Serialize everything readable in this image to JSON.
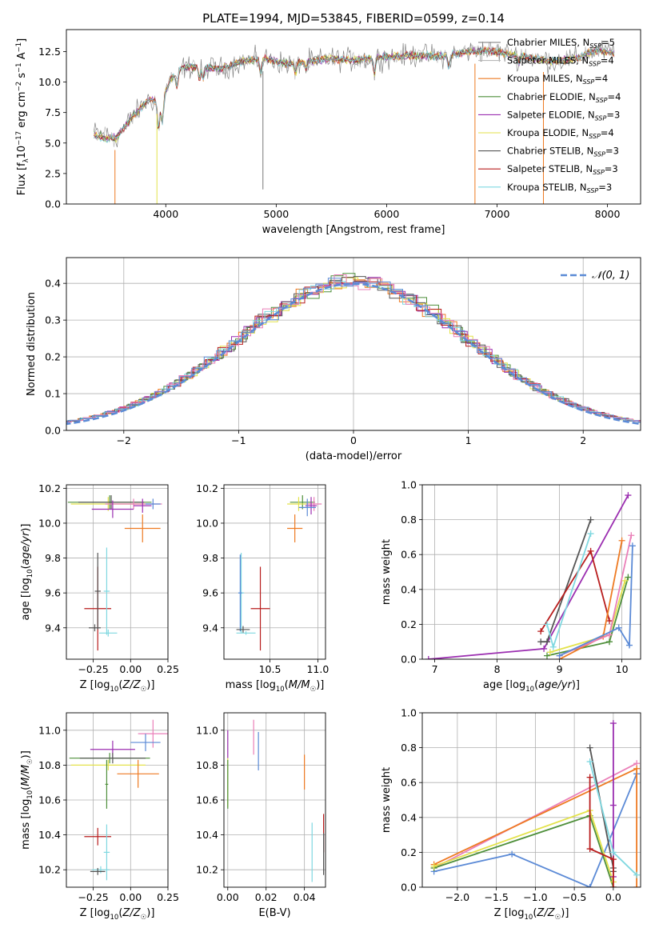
{
  "figure": {
    "title": "PLATE=1994, MJD=53845, FIBERID=0599, z=0.14"
  },
  "chart_data": [
    {
      "id": "spectrum",
      "type": "line",
      "title": "PLATE=1994, MJD=53845, FIBERID=0599, z=0.14",
      "xlabel": "wavelength [Angstrom, rest frame]",
      "ylabel": "Flux [f_λ 10^-17 erg cm^-2 s^-1 A^-1]",
      "xlim": [
        3100,
        8300
      ],
      "ylim": [
        0,
        14.3
      ],
      "xticks": [
        4000,
        5000,
        6000,
        7000,
        8000
      ],
      "yticks": [
        0.0,
        2.5,
        5.0,
        7.5,
        10.0,
        12.5
      ],
      "grid": false,
      "legend_position": "upper-right",
      "series": [
        {
          "name": "Chabrier MILES, N_SSP=5",
          "color": "#777777"
        },
        {
          "name": "Salpeter MILES, N_SSP=4",
          "color": "#b9b9b9"
        },
        {
          "name": "Kroupa MILES, N_SSP=4",
          "color": "#ee7a22"
        },
        {
          "name": "Chabrier ELODIE, N_SSP=4",
          "color": "#4e8f3a"
        },
        {
          "name": "Salpeter ELODIE, N_SSP=3",
          "color": "#9b2eb0"
        },
        {
          "name": "Kroupa ELODIE, N_SSP=4",
          "color": "#e3e24a"
        },
        {
          "name": "Chabrier STELIB, N_SSP=3",
          "color": "#555555"
        },
        {
          "name": "Salpeter STELIB, N_SSP=3",
          "color": "#b81c1c"
        },
        {
          "name": "Kroupa STELIB, N_SSP=3",
          "color": "#7fd8e0"
        }
      ],
      "continuum": {
        "x": [
          3350,
          3550,
          3700,
          3850,
          3950,
          4050,
          4150,
          4300,
          4500,
          4700,
          4900,
          5100,
          5300,
          5500,
          5700,
          5900,
          6100,
          6300,
          6500,
          6700,
          6900,
          7100,
          7300,
          7500,
          7700,
          7900,
          8060
        ],
        "y": [
          5.9,
          5.4,
          7.2,
          8.6,
          8.3,
          10.3,
          11.2,
          11.3,
          11.1,
          11.7,
          11.9,
          11.5,
          11.7,
          11.9,
          11.8,
          12.0,
          12.1,
          12.2,
          12.1,
          12.4,
          12.6,
          12.3,
          12.0,
          11.7,
          11.9,
          12.6,
          12.4
        ]
      }
    },
    {
      "id": "residuals",
      "type": "line",
      "xlabel": "(data-model)/error",
      "ylabel": "Normed distribution",
      "xlim": [
        -2.5,
        2.5
      ],
      "ylim": [
        0,
        0.47
      ],
      "xticks": [
        -2,
        -1,
        0,
        1,
        2
      ],
      "yticks": [
        0.0,
        0.1,
        0.2,
        0.3,
        0.4
      ],
      "grid": true,
      "legend": [
        "𝒩(0, 1)"
      ],
      "legend_position": "top-right",
      "reference": {
        "name": "𝒩(0, 1)",
        "mean": 0,
        "sigma": 1,
        "color": "#5b8ad6"
      },
      "histogram_colors": [
        "#ee7a22",
        "#4e8f3a",
        "#9b2eb0",
        "#e3e24a",
        "#555555",
        "#b81c1c",
        "#7fd8e0",
        "#ea7fb8",
        "#5b8ad6"
      ]
    },
    {
      "id": "age_vs_Z",
      "type": "scatter",
      "xlabel": "Z [log10(Z/Z☉)]",
      "ylabel": "age  [log10(age/yr)]",
      "xlim": [
        -0.43,
        0.25
      ],
      "ylim": [
        9.22,
        10.22
      ],
      "xticks": [
        -0.25,
        0.0,
        0.25
      ],
      "ytick_values": [
        9.4,
        9.6,
        9.8,
        10.0,
        10.2
      ],
      "grid": true,
      "points": [
        {
          "x": -0.14,
          "y": 10.12,
          "xerr": 0.28,
          "yerr": 0.04,
          "color": "#4e8f3a"
        },
        {
          "x": -0.15,
          "y": 10.11,
          "xerr": 0.25,
          "yerr": 0.04,
          "color": "#e3e24a"
        },
        {
          "x": -0.13,
          "y": 10.12,
          "xerr": 0.22,
          "yerr": 0.04,
          "color": "#555555"
        },
        {
          "x": 0.02,
          "y": 10.11,
          "xerr": 0.19,
          "yerr": 0.03,
          "color": "#ea7fb8"
        },
        {
          "x": 0.15,
          "y": 10.11,
          "xerr": 0.05,
          "yerr": 0.03,
          "color": "#5b8ad6"
        },
        {
          "x": 0.08,
          "y": 10.1,
          "xerr": 0.06,
          "yerr": 0.04,
          "color": "#9b2eb0"
        },
        {
          "x": -0.12,
          "y": 10.08,
          "xerr": 0.14,
          "yerr": 0.05,
          "color": "#9b2eb0"
        },
        {
          "x": 0.08,
          "y": 9.97,
          "xerr": 0.12,
          "yerr": 0.08,
          "color": "#ee7a22"
        },
        {
          "x": -0.22,
          "y": 9.51,
          "xerr": 0.09,
          "yerr": 0.24,
          "color": "#b81c1c"
        },
        {
          "x": -0.22,
          "y": 9.61,
          "xerr": 0.02,
          "yerr": 0.22,
          "color": "#555555"
        },
        {
          "x": -0.16,
          "y": 9.61,
          "xerr": 0.02,
          "yerr": 0.25,
          "color": "#7fd8e0"
        },
        {
          "x": -0.15,
          "y": 9.37,
          "xerr": 0.06,
          "yerr": 0.02,
          "color": "#7fd8e0"
        },
        {
          "x": -0.24,
          "y": 9.4,
          "xerr": 0.04,
          "yerr": 0.02,
          "color": "#555555"
        }
      ]
    },
    {
      "id": "age_vs_mass",
      "type": "scatter",
      "xlabel": "mass [log10(M/M☉)]",
      "ylabel": "",
      "xlim": [
        10.02,
        11.08
      ],
      "ylim": [
        9.22,
        10.22
      ],
      "xticks": [
        10.5,
        11.0
      ],
      "yticks": [
        9.4,
        9.6,
        9.8,
        10.0,
        10.2
      ],
      "grid": true,
      "points": [
        {
          "x": 10.84,
          "y": 10.12,
          "xerr": 0.13,
          "yerr": 0.04,
          "color": "#4e8f3a"
        },
        {
          "x": 10.8,
          "y": 10.11,
          "xerr": 0.12,
          "yerr": 0.04,
          "color": "#e3e24a"
        },
        {
          "x": 10.96,
          "y": 10.11,
          "xerr": 0.08,
          "yerr": 0.04,
          "color": "#ea7fb8"
        },
        {
          "x": 10.93,
          "y": 10.1,
          "xerr": 0.06,
          "yerr": 0.05,
          "color": "#9b2eb0"
        },
        {
          "x": 10.89,
          "y": 10.09,
          "xerr": 0.09,
          "yerr": 0.05,
          "color": "#5b8ad6"
        },
        {
          "x": 10.76,
          "y": 9.97,
          "xerr": 0.08,
          "yerr": 0.08,
          "color": "#ee7a22"
        },
        {
          "x": 10.4,
          "y": 9.51,
          "xerr": 0.1,
          "yerr": 0.24,
          "color": "#b81c1c"
        },
        {
          "x": 10.2,
          "y": 9.6,
          "xerr": 0.03,
          "yerr": 0.23,
          "color": "#7fd8e0"
        },
        {
          "x": 10.19,
          "y": 9.6,
          "xerr": 0.02,
          "yerr": 0.22,
          "color": "#5b8ad6"
        },
        {
          "x": 10.22,
          "y": 9.39,
          "xerr": 0.07,
          "yerr": 0.02,
          "color": "#555555"
        },
        {
          "x": 10.25,
          "y": 9.37,
          "xerr": 0.1,
          "yerr": 0.01,
          "color": "#7fd8e0"
        }
      ]
    },
    {
      "id": "weight_vs_age",
      "type": "line",
      "xlabel": "age  [log10(age/yr)]",
      "ylabel": "mass weight",
      "xlim": [
        6.8,
        10.3
      ],
      "ylim": [
        0,
        1.0
      ],
      "xticks": [
        7,
        8,
        9,
        10
      ],
      "yticks": [
        0.0,
        0.2,
        0.4,
        0.6,
        0.8,
        1.0
      ],
      "grid": true,
      "series": [
        {
          "color": "#9b2eb0",
          "x": [
            6.9,
            8.75,
            10.1
          ],
          "y": [
            0.0,
            0.06,
            0.94
          ]
        },
        {
          "color": "#555555",
          "x": [
            8.7,
            8.8,
            9.5
          ],
          "y": [
            0.1,
            0.1,
            0.8
          ]
        },
        {
          "color": "#b81c1c",
          "x": [
            8.7,
            9.5,
            9.8
          ],
          "y": [
            0.16,
            0.62,
            0.22
          ]
        },
        {
          "color": "#7fd8e0",
          "x": [
            8.8,
            8.9,
            9.5
          ],
          "y": [
            0.2,
            0.07,
            0.72
          ]
        },
        {
          "color": "#4e8f3a",
          "x": [
            8.8,
            9.8,
            10.1
          ],
          "y": [
            0.02,
            0.1,
            0.47
          ]
        },
        {
          "color": "#e3e24a",
          "x": [
            8.85,
            9.8,
            10.05
          ],
          "y": [
            0.04,
            0.14,
            0.45
          ]
        },
        {
          "color": "#ee7a22",
          "x": [
            9.0,
            9.7,
            10.0
          ],
          "y": [
            0.0,
            0.13,
            0.68
          ]
        },
        {
          "color": "#ea7fb8",
          "x": [
            9.0,
            9.8,
            10.15
          ],
          "y": [
            0.02,
            0.14,
            0.71
          ]
        },
        {
          "color": "#5b8ad6",
          "x": [
            9.0,
            9.95,
            10.12,
            10.17
          ],
          "y": [
            0.02,
            0.18,
            0.08,
            0.65
          ]
        }
      ]
    },
    {
      "id": "mass_vs_Z",
      "type": "scatter",
      "xlabel": "Z [log10(Z/Z☉)]",
      "ylabel": "mass [log10(M/M☉)]",
      "xlim": [
        -0.43,
        0.25
      ],
      "ylim": [
        10.1,
        11.1
      ],
      "xticks": [
        -0.25,
        0.0,
        0.25
      ],
      "yticks": [
        10.2,
        10.4,
        10.6,
        10.8,
        11.0
      ],
      "grid": true,
      "points": [
        {
          "x": 0.15,
          "y": 10.98,
          "xerr": 0.1,
          "yerr": 0.08,
          "color": "#ea7fb8"
        },
        {
          "x": 0.1,
          "y": 10.93,
          "xerr": 0.1,
          "yerr": 0.05,
          "color": "#5b8ad6"
        },
        {
          "x": -0.12,
          "y": 10.89,
          "xerr": 0.15,
          "yerr": 0.05,
          "color": "#9b2eb0"
        },
        {
          "x": -0.14,
          "y": 10.84,
          "xerr": 0.27,
          "yerr": 0.03,
          "color": "#4e8f3a"
        },
        {
          "x": -0.15,
          "y": 10.8,
          "xerr": 0.25,
          "yerr": 0.03,
          "color": "#e3e24a"
        },
        {
          "x": -0.12,
          "y": 10.84,
          "xerr": 0.22,
          "yerr": 0.03,
          "color": "#555555"
        },
        {
          "x": 0.05,
          "y": 10.75,
          "xerr": 0.14,
          "yerr": 0.08,
          "color": "#ee7a22"
        },
        {
          "x": -0.16,
          "y": 10.69,
          "xerr": 0.01,
          "yerr": 0.14,
          "color": "#4e8f3a"
        },
        {
          "x": -0.22,
          "y": 10.39,
          "xerr": 0.09,
          "yerr": 0.05,
          "color": "#b81c1c"
        },
        {
          "x": -0.16,
          "y": 10.3,
          "xerr": 0.02,
          "yerr": 0.16,
          "color": "#7fd8e0"
        },
        {
          "x": -0.2,
          "y": 10.2,
          "xerr": 0.06,
          "yerr": 0.02,
          "color": "#7fd8e0"
        },
        {
          "x": -0.22,
          "y": 10.19,
          "xerr": 0.05,
          "yerr": 0.02,
          "color": "#555555"
        }
      ]
    },
    {
      "id": "mass_vs_EBV",
      "type": "scatter",
      "xlabel": "E(B-V)",
      "ylabel": "",
      "xlim": [
        -0.002,
        0.051
      ],
      "ylim": [
        10.1,
        11.1
      ],
      "xticks": [
        0.0,
        0.02,
        0.04
      ],
      "yticks": [
        10.2,
        10.4,
        10.6,
        10.8,
        11.0
      ],
      "grid": true,
      "points": [
        {
          "x": 0.0,
          "y": 10.92,
          "xerr": 0,
          "yerr": 0.08,
          "color": "#9b2eb0"
        },
        {
          "x": 0.0,
          "y": 10.7,
          "xerr": 0,
          "yerr": 0.14,
          "color": "#e3e24a"
        },
        {
          "x": 0.0,
          "y": 10.69,
          "xerr": 0,
          "yerr": 0.14,
          "color": "#4e8f3a"
        },
        {
          "x": 0.0135,
          "y": 10.96,
          "xerr": 0,
          "yerr": 0.1,
          "color": "#ea7fb8"
        },
        {
          "x": 0.016,
          "y": 10.88,
          "xerr": 0,
          "yerr": 0.11,
          "color": "#5b8ad6"
        },
        {
          "x": 0.04,
          "y": 10.76,
          "xerr": 0,
          "yerr": 0.1,
          "color": "#ee7a22"
        },
        {
          "x": 0.044,
          "y": 10.3,
          "xerr": 0,
          "yerr": 0.17,
          "color": "#7fd8e0"
        },
        {
          "x": 0.05,
          "y": 10.41,
          "xerr": 0,
          "yerr": 0.11,
          "color": "#b81c1c"
        },
        {
          "x": 0.05,
          "y": 10.29,
          "xerr": 0,
          "yerr": 0.12,
          "color": "#555555"
        }
      ]
    },
    {
      "id": "weight_vs_Z",
      "type": "line",
      "xlabel": "Z [log10(Z/Z☉)]",
      "ylabel": "mass weight",
      "xlim": [
        -2.45,
        0.35
      ],
      "ylim": [
        0,
        1.0
      ],
      "xticks": [
        -2.0,
        -1.5,
        -1.0,
        -0.5,
        0.0
      ],
      "yticks": [
        0.0,
        0.2,
        0.4,
        0.6,
        0.8,
        1.0
      ],
      "grid": true,
      "series": [
        {
          "color": "#5b8ad6",
          "x": [
            -2.3,
            -1.3,
            -0.3,
            0.3
          ],
          "y": [
            0.09,
            0.19,
            0.0,
            0.65
          ]
        },
        {
          "color": "#ea7fb8",
          "x": [
            -2.3,
            0.3
          ],
          "y": [
            0.11,
            0.71
          ]
        },
        {
          "color": "#ee7a22",
          "x": [
            -2.3,
            0.3,
            0.3
          ],
          "y": [
            0.13,
            0.68,
            0.0
          ]
        },
        {
          "color": "#4e8f3a",
          "x": [
            -2.3,
            -0.3,
            0.0
          ],
          "y": [
            0.11,
            0.41,
            0.0
          ]
        },
        {
          "color": "#e3e24a",
          "x": [
            -2.3,
            -0.3,
            0.0
          ],
          "y": [
            0.12,
            0.44,
            0.03
          ]
        },
        {
          "color": "#9b2eb0",
          "x": [
            0.0,
            0.0,
            0.0
          ],
          "y": [
            0.94,
            0.47,
            0.06
          ]
        },
        {
          "color": "#555555",
          "x": [
            -0.3,
            0.0,
            0.0
          ],
          "y": [
            0.8,
            0.11,
            0.09
          ]
        },
        {
          "color": "#b81c1c",
          "x": [
            -0.3,
            -0.3,
            0.0,
            0.0
          ],
          "y": [
            0.63,
            0.22,
            0.16,
            0.0
          ]
        },
        {
          "color": "#7fd8e0",
          "x": [
            -0.3,
            0.0,
            0.3
          ],
          "y": [
            0.72,
            0.2,
            0.07
          ]
        }
      ]
    }
  ]
}
